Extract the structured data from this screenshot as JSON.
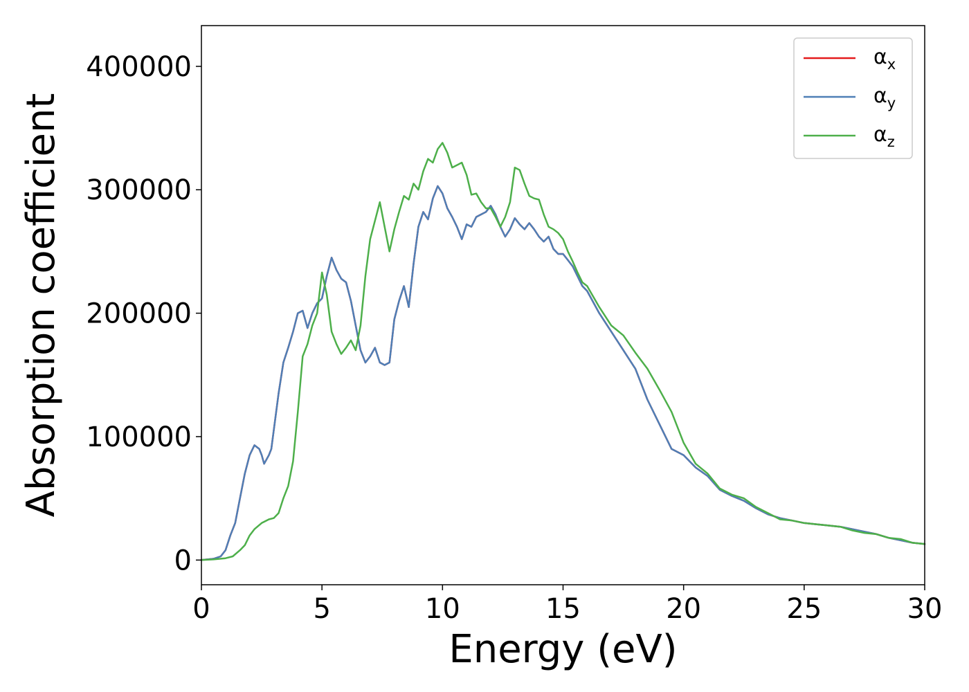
{
  "chart_data": {
    "type": "line",
    "title": "",
    "xlabel": "Energy (eV)",
    "ylabel": "Absorption coefficient",
    "xlim": [
      0,
      30
    ],
    "ylim": [
      -20000,
      433000
    ],
    "xticks": [
      0,
      5,
      10,
      15,
      20,
      25,
      30
    ],
    "yticks": [
      0,
      100000,
      200000,
      300000,
      400000
    ],
    "xtick_labels": [
      "0",
      "5",
      "10",
      "15",
      "20",
      "25",
      "30"
    ],
    "ytick_labels": [
      "0",
      "100000",
      "200000",
      "300000",
      "400000"
    ],
    "grid": false,
    "legend": "top-right",
    "series": [
      {
        "name": "αx",
        "base": "α",
        "sub": "x",
        "color": "#e41a1c",
        "x": [
          0,
          0.5,
          0.8,
          1.0,
          1.2,
          1.4,
          1.6,
          1.8,
          2.0,
          2.2,
          2.4,
          2.5,
          2.6,
          2.8,
          2.9,
          3.0,
          3.2,
          3.4,
          3.6,
          3.8,
          4.0,
          4.2,
          4.4,
          4.6,
          4.8,
          5.0,
          5.2,
          5.4,
          5.6,
          5.8,
          6.0,
          6.2,
          6.4,
          6.6,
          6.8,
          7.0,
          7.2,
          7.4,
          7.6,
          7.8,
          8.0,
          8.2,
          8.4,
          8.6,
          8.8,
          9.0,
          9.2,
          9.4,
          9.6,
          9.8,
          10.0,
          10.2,
          10.4,
          10.6,
          10.8,
          11.0,
          11.2,
          11.4,
          11.6,
          11.8,
          12.0,
          12.2,
          12.4,
          12.6,
          12.8,
          13.0,
          13.2,
          13.4,
          13.6,
          13.8,
          14.0,
          14.2,
          14.4,
          14.6,
          14.8,
          15.0,
          15.2,
          15.4,
          15.6,
          15.8,
          16.0,
          16.5,
          17.0,
          17.5,
          18.0,
          18.5,
          19.0,
          19.5,
          20.0,
          20.5,
          21.0,
          21.5,
          22.0,
          22.5,
          23.0,
          23.5,
          24.0,
          24.5,
          25.0,
          25.5,
          26.0,
          26.5,
          27.0,
          27.5,
          28.0,
          28.5,
          29.0,
          29.5,
          30.0
        ],
        "y": [
          0,
          1000,
          3000,
          8000,
          20000,
          30000,
          50000,
          70000,
          85000,
          93000,
          90000,
          85000,
          78000,
          85000,
          90000,
          105000,
          135000,
          160000,
          172000,
          185000,
          200000,
          202000,
          188000,
          200000,
          208000,
          212000,
          230000,
          245000,
          235000,
          228000,
          225000,
          210000,
          190000,
          170000,
          160000,
          165000,
          172000,
          160000,
          158000,
          160000,
          195000,
          210000,
          222000,
          205000,
          240000,
          270000,
          282000,
          276000,
          293000,
          303000,
          297000,
          285000,
          278000,
          270000,
          260000,
          272000,
          270000,
          278000,
          280000,
          282000,
          287000,
          280000,
          270000,
          262000,
          268000,
          277000,
          272000,
          268000,
          273000,
          268000,
          262000,
          258000,
          262000,
          252000,
          248000,
          248000,
          243000,
          238000,
          230000,
          222000,
          218000,
          200000,
          185000,
          170000,
          155000,
          130000,
          110000,
          90000,
          85000,
          75000,
          68000,
          57000,
          52000,
          48000,
          42000,
          37000,
          34000,
          32000,
          30000,
          29000,
          28000,
          27000,
          25000,
          23000,
          21000,
          18000,
          16000,
          14000,
          13000
        ]
      },
      {
        "name": "αy",
        "base": "α",
        "sub": "y",
        "color": "#4e7fb6",
        "x": [
          0,
          0.5,
          0.8,
          1.0,
          1.2,
          1.4,
          1.6,
          1.8,
          2.0,
          2.2,
          2.4,
          2.5,
          2.6,
          2.8,
          2.9,
          3.0,
          3.2,
          3.4,
          3.6,
          3.8,
          4.0,
          4.2,
          4.4,
          4.6,
          4.8,
          5.0,
          5.2,
          5.4,
          5.6,
          5.8,
          6.0,
          6.2,
          6.4,
          6.6,
          6.8,
          7.0,
          7.2,
          7.4,
          7.6,
          7.8,
          8.0,
          8.2,
          8.4,
          8.6,
          8.8,
          9.0,
          9.2,
          9.4,
          9.6,
          9.8,
          10.0,
          10.2,
          10.4,
          10.6,
          10.8,
          11.0,
          11.2,
          11.4,
          11.6,
          11.8,
          12.0,
          12.2,
          12.4,
          12.6,
          12.8,
          13.0,
          13.2,
          13.4,
          13.6,
          13.8,
          14.0,
          14.2,
          14.4,
          14.6,
          14.8,
          15.0,
          15.2,
          15.4,
          15.6,
          15.8,
          16.0,
          16.5,
          17.0,
          17.5,
          18.0,
          18.5,
          19.0,
          19.5,
          20.0,
          20.5,
          21.0,
          21.5,
          22.0,
          22.5,
          23.0,
          23.5,
          24.0,
          24.5,
          25.0,
          25.5,
          26.0,
          26.5,
          27.0,
          27.5,
          28.0,
          28.5,
          29.0,
          29.5,
          30.0
        ],
        "y": [
          0,
          1000,
          3000,
          8000,
          20000,
          30000,
          50000,
          70000,
          85000,
          93000,
          90000,
          85000,
          78000,
          85000,
          90000,
          105000,
          135000,
          160000,
          172000,
          185000,
          200000,
          202000,
          188000,
          200000,
          208000,
          212000,
          230000,
          245000,
          235000,
          228000,
          225000,
          210000,
          190000,
          170000,
          160000,
          165000,
          172000,
          160000,
          158000,
          160000,
          195000,
          210000,
          222000,
          205000,
          240000,
          270000,
          282000,
          276000,
          293000,
          303000,
          297000,
          285000,
          278000,
          270000,
          260000,
          272000,
          270000,
          278000,
          280000,
          282000,
          287000,
          280000,
          270000,
          262000,
          268000,
          277000,
          272000,
          268000,
          273000,
          268000,
          262000,
          258000,
          262000,
          252000,
          248000,
          248000,
          243000,
          238000,
          230000,
          222000,
          218000,
          200000,
          185000,
          170000,
          155000,
          130000,
          110000,
          90000,
          85000,
          75000,
          68000,
          57000,
          52000,
          48000,
          42000,
          37000,
          34000,
          32000,
          30000,
          29000,
          28000,
          27000,
          25000,
          23000,
          21000,
          18000,
          16000,
          14000,
          13000
        ]
      },
      {
        "name": "αz",
        "base": "α",
        "sub": "z",
        "color": "#4daf4a",
        "x": [
          0,
          0.5,
          1.0,
          1.3,
          1.6,
          1.8,
          2.0,
          2.2,
          2.5,
          2.8,
          3.0,
          3.2,
          3.4,
          3.6,
          3.8,
          4.0,
          4.2,
          4.4,
          4.6,
          4.8,
          5.0,
          5.2,
          5.4,
          5.6,
          5.8,
          6.0,
          6.2,
          6.4,
          6.6,
          6.8,
          7.0,
          7.2,
          7.4,
          7.6,
          7.8,
          8.0,
          8.2,
          8.4,
          8.6,
          8.8,
          9.0,
          9.2,
          9.4,
          9.6,
          9.8,
          10.0,
          10.2,
          10.4,
          10.6,
          10.8,
          11.0,
          11.2,
          11.4,
          11.6,
          11.8,
          12.0,
          12.2,
          12.4,
          12.6,
          12.8,
          13.0,
          13.2,
          13.4,
          13.6,
          13.8,
          14.0,
          14.2,
          14.4,
          14.6,
          14.8,
          15.0,
          15.2,
          15.4,
          15.6,
          15.8,
          16.0,
          16.5,
          17.0,
          17.5,
          18.0,
          18.5,
          19.0,
          19.5,
          20.0,
          20.5,
          21.0,
          21.5,
          22.0,
          22.5,
          23.0,
          23.5,
          24.0,
          24.5,
          25.0,
          25.5,
          26.0,
          26.5,
          27.0,
          27.5,
          28.0,
          28.5,
          29.0,
          29.5,
          30.0
        ],
        "y": [
          0,
          500,
          1500,
          3000,
          8000,
          12000,
          20000,
          25000,
          30000,
          33000,
          34000,
          38000,
          50000,
          60000,
          80000,
          120000,
          165000,
          175000,
          190000,
          200000,
          233000,
          215000,
          185000,
          175000,
          167000,
          172000,
          178000,
          170000,
          190000,
          230000,
          260000,
          275000,
          290000,
          270000,
          250000,
          268000,
          282000,
          295000,
          292000,
          305000,
          300000,
          315000,
          325000,
          322000,
          333000,
          338000,
          330000,
          318000,
          320000,
          322000,
          312000,
          296000,
          297000,
          290000,
          285000,
          285000,
          278000,
          270000,
          278000,
          290000,
          318000,
          316000,
          305000,
          295000,
          293000,
          292000,
          280000,
          270000,
          268000,
          265000,
          260000,
          250000,
          242000,
          233000,
          225000,
          222000,
          205000,
          190000,
          182000,
          168000,
          155000,
          138000,
          120000,
          95000,
          78000,
          70000,
          58000,
          53000,
          50000,
          43000,
          38000,
          33000,
          32000,
          30000,
          29000,
          28000,
          27000,
          24000,
          22000,
          21000,
          18000,
          17000,
          14000,
          13000
        ]
      }
    ]
  }
}
